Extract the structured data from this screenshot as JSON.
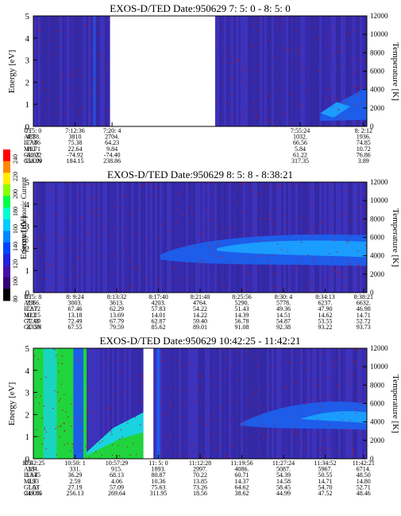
{
  "chart_data": [
    {
      "type": "heatmap",
      "title": "EXOS-D/TED   Date:950629  7: 5: 0 - 8: 5: 0",
      "ylabel": "Energy [eV]",
      "y2label": "Temperature [K]",
      "ylim": [
        0,
        5
      ],
      "y2lim": [
        0,
        12000
      ],
      "yticks": [
        0,
        1,
        2,
        3,
        4,
        5
      ],
      "y2ticks": [
        0,
        2000,
        4000,
        6000,
        8000,
        10000,
        12000
      ],
      "gaps": [
        [
          0.23,
          0.545
        ]
      ],
      "table_rows": [
        "UT",
        "ALT",
        "ILAT",
        "MLT",
        "GLAT",
        "GLON"
      ],
      "columns": [
        {
          "pos": 0.0,
          "values": [
            "7: 5: 0",
            "4838.",
            "77.86",
            "19.71",
            "-68.22",
            "158.09"
          ]
        },
        {
          "pos": 0.125,
          "values": [
            "7:12:36",
            "3810",
            "75.38",
            "22.64",
            "-74.92",
            "184.15"
          ]
        },
        {
          "pos": 0.236,
          "values": [
            "7:20: 4",
            "2704.",
            "64.23",
            "9.84",
            "-74.40",
            "238.86"
          ]
        },
        {
          "pos": 0.8,
          "values": [
            "7:55:24",
            "1032.",
            "66.56",
            "5.84",
            "61.22",
            "317.35"
          ]
        },
        {
          "pos": 0.99,
          "values": [
            "8: 2:12",
            "1936.",
            "74.85",
            "10.72",
            "76.86",
            "3.89"
          ]
        }
      ]
    },
    {
      "type": "heatmap",
      "title": "EXOS-D/TED   Date:950629  8: 5: 8 - 8:38:21",
      "ylabel": "Energy [eV]",
      "y2label": "Temperature [K]",
      "ylim": [
        0,
        5
      ],
      "y2lim": [
        0,
        12000
      ],
      "yticks": [
        0,
        1,
        2,
        3,
        4,
        5
      ],
      "y2ticks": [
        0,
        2000,
        4000,
        6000,
        8000,
        10000,
        12000
      ],
      "gaps": [],
      "table_rows": [
        "UT",
        "ALT",
        "ILAT",
        "MLT",
        "GLAT",
        "GLON"
      ],
      "columns": [
        {
          "pos": 0.0,
          "values": [
            "8: 5: 8",
            "2366.",
            "72.72",
            "12.15",
            "77.09",
            "37.59"
          ]
        },
        {
          "pos": 0.125,
          "values": [
            "8: 9:24",
            "3003.",
            "67.46",
            "13.18",
            "72.49",
            "67.55"
          ]
        },
        {
          "pos": 0.25,
          "values": [
            "8:13:32",
            "3613.",
            "62.29",
            "13.69",
            "67.79",
            "79.59"
          ]
        },
        {
          "pos": 0.375,
          "values": [
            "8:17:40",
            "4203.",
            "57.83",
            "14.01",
            "62.87",
            "85.62"
          ]
        },
        {
          "pos": 0.5,
          "values": [
            "8:21:48",
            "4764.",
            "54.22",
            "14.22",
            "59.40",
            "89.01"
          ]
        },
        {
          "pos": 0.625,
          "values": [
            "8:25:56",
            "5290.",
            "51.43",
            "14.39",
            "56.78",
            "91.08"
          ]
        },
        {
          "pos": 0.75,
          "values": [
            "8:30: 4",
            "5778.",
            "49.36",
            "14.51",
            "54.87",
            "92.38"
          ]
        },
        {
          "pos": 0.875,
          "values": [
            "8:34:13",
            "6237.",
            "47.90",
            "14.62",
            "53.55",
            "93.22"
          ]
        },
        {
          "pos": 0.99,
          "values": [
            "8:38:21",
            "6632.",
            "46.98",
            "14.71",
            "52.72",
            "93.73"
          ]
        }
      ]
    },
    {
      "type": "heatmap",
      "title": "EXOS-D/TED   Date:950629  10:42:25 - 11:42:21",
      "ylabel": "Energy [eV]",
      "y2label": "Temperature [K]",
      "ylim": [
        0,
        5
      ],
      "y2lim": [
        0,
        12000
      ],
      "yticks": [
        0,
        1,
        2,
        3,
        4,
        5
      ],
      "y2ticks": [
        0,
        2000,
        4000,
        6000,
        8000,
        10000,
        12000
      ],
      "gaps": [
        [
          0.33,
          0.36
        ]
      ],
      "table_rows": [
        "UT",
        "ALT",
        "ILAT",
        "MLT",
        "GLAT",
        "GLON"
      ],
      "columns": [
        {
          "pos": 0.0,
          "values": [
            "10:42:25",
            "384.",
            "13.45",
            "2.93",
            "1.03",
            "249.65"
          ]
        },
        {
          "pos": 0.125,
          "values": [
            "10:50: 1",
            "331.",
            "36.29",
            "2.59",
            "27.19",
            "256.13"
          ]
        },
        {
          "pos": 0.25,
          "values": [
            "10:57:29",
            "915.",
            "68.13",
            "4.06",
            "57.09",
            "269.64"
          ]
        },
        {
          "pos": 0.375,
          "values": [
            "11: 5: 0",
            "1893.",
            "80.87",
            "10.36",
            "75.63",
            "311.95"
          ]
        },
        {
          "pos": 0.5,
          "values": [
            "11:12:28",
            "2997.",
            "70.22",
            "13.85",
            "73.26",
            "18.56"
          ]
        },
        {
          "pos": 0.625,
          "values": [
            "11:19:56",
            "4086.",
            "60.71",
            "14.37",
            "64.62",
            "38.62"
          ]
        },
        {
          "pos": 0.75,
          "values": [
            "11:27:24",
            "5087.",
            "54.39",
            "14.58",
            "58.45",
            "44.99"
          ]
        },
        {
          "pos": 0.875,
          "values": [
            "11:34:52",
            "5967.",
            "50.55",
            "14.71",
            "54.70",
            "47.52"
          ]
        },
        {
          "pos": 0.99,
          "values": [
            "11:42:21",
            "6714.",
            "48.50",
            "14.80",
            "52.71",
            "48.46"
          ]
        }
      ]
    }
  ],
  "colorbar": {
    "label": "Second Harmonic Current",
    "ticks": [
      "240",
      "220",
      "200",
      "180",
      "160",
      "140",
      "120",
      "100",
      "80"
    ],
    "colors": [
      "#ff0000",
      "#ff8800",
      "#ffee00",
      "#88ff00",
      "#00ff44",
      "#00ffcc",
      "#00ccff",
      "#0088ff",
      "#0044ff",
      "#2222dd",
      "#4411aa",
      "#330077",
      "#000000"
    ]
  },
  "colors": {
    "background_field": "#3a2fb4",
    "dots": "#c21616",
    "plasma_bright": "#1b9cff",
    "plasma_mid": "#1d5dea",
    "green": "#1fd43c",
    "cyan": "#19d3e0"
  }
}
